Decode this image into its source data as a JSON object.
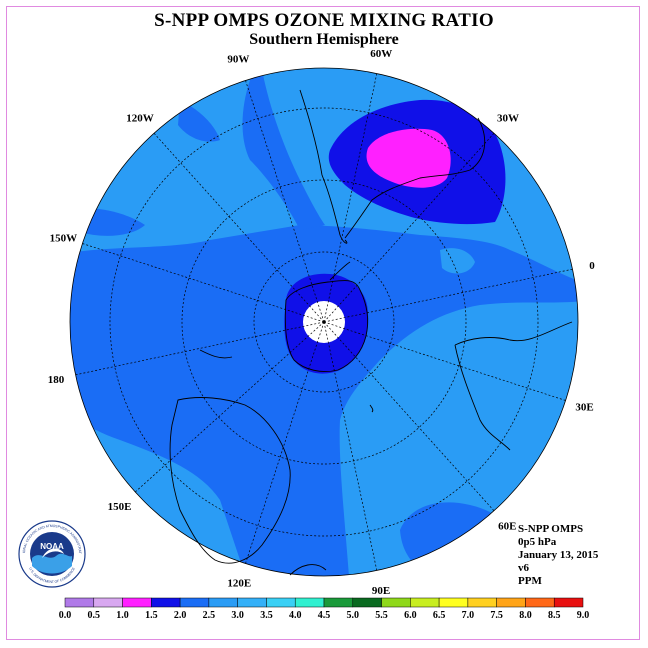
{
  "title": "S-NPP OMPS OZONE MIXING RATIO",
  "subtitle": "Southern Hemisphere",
  "longitude_labels": [
    "90W",
    "60W",
    "30W",
    "0",
    "30E",
    "60E",
    "90E",
    "120E",
    "150E",
    "180",
    "150W",
    "120W"
  ],
  "info": {
    "instrument": "S-NPP OMPS",
    "level": "0p5 hPa",
    "date": "January 13, 2015",
    "version": "v6",
    "units": "PPM"
  },
  "logo": {
    "text": "NOAA",
    "ring_text": "NATIONAL OCEANIC AND ATMOSPHERIC ADMINISTRATION",
    "ring_text_bottom": "U.S. DEPARTMENT OF COMMERCE"
  },
  "colorbar": {
    "ticks": [
      "0.0",
      "0.5",
      "1.0",
      "1.5",
      "2.0",
      "2.5",
      "3.0",
      "3.5",
      "4.0",
      "4.5",
      "5.0",
      "5.5",
      "6.0",
      "6.5",
      "7.0",
      "7.5",
      "8.0",
      "8.5",
      "9.0"
    ],
    "colors": [
      "#b07ae8",
      "#d8a8f0",
      "#ff20ff",
      "#1010e8",
      "#1a6df5",
      "#2a9cf5",
      "#33b0f8",
      "#3ad0f5",
      "#30f0d0",
      "#1a9a3a",
      "#0a6a20",
      "#8fd81a",
      "#c8ee20",
      "#ffff20",
      "#ffd020",
      "#ffa418",
      "#ff6818",
      "#e81010",
      "#8a4a2a"
    ]
  },
  "colors": {
    "level_2_0": "#1010e8",
    "level_2_5": "#1a6df5",
    "level_3_0": "#2a9cf5",
    "level_1_5": "#ff20ff",
    "frame": "#e08ae0"
  }
}
